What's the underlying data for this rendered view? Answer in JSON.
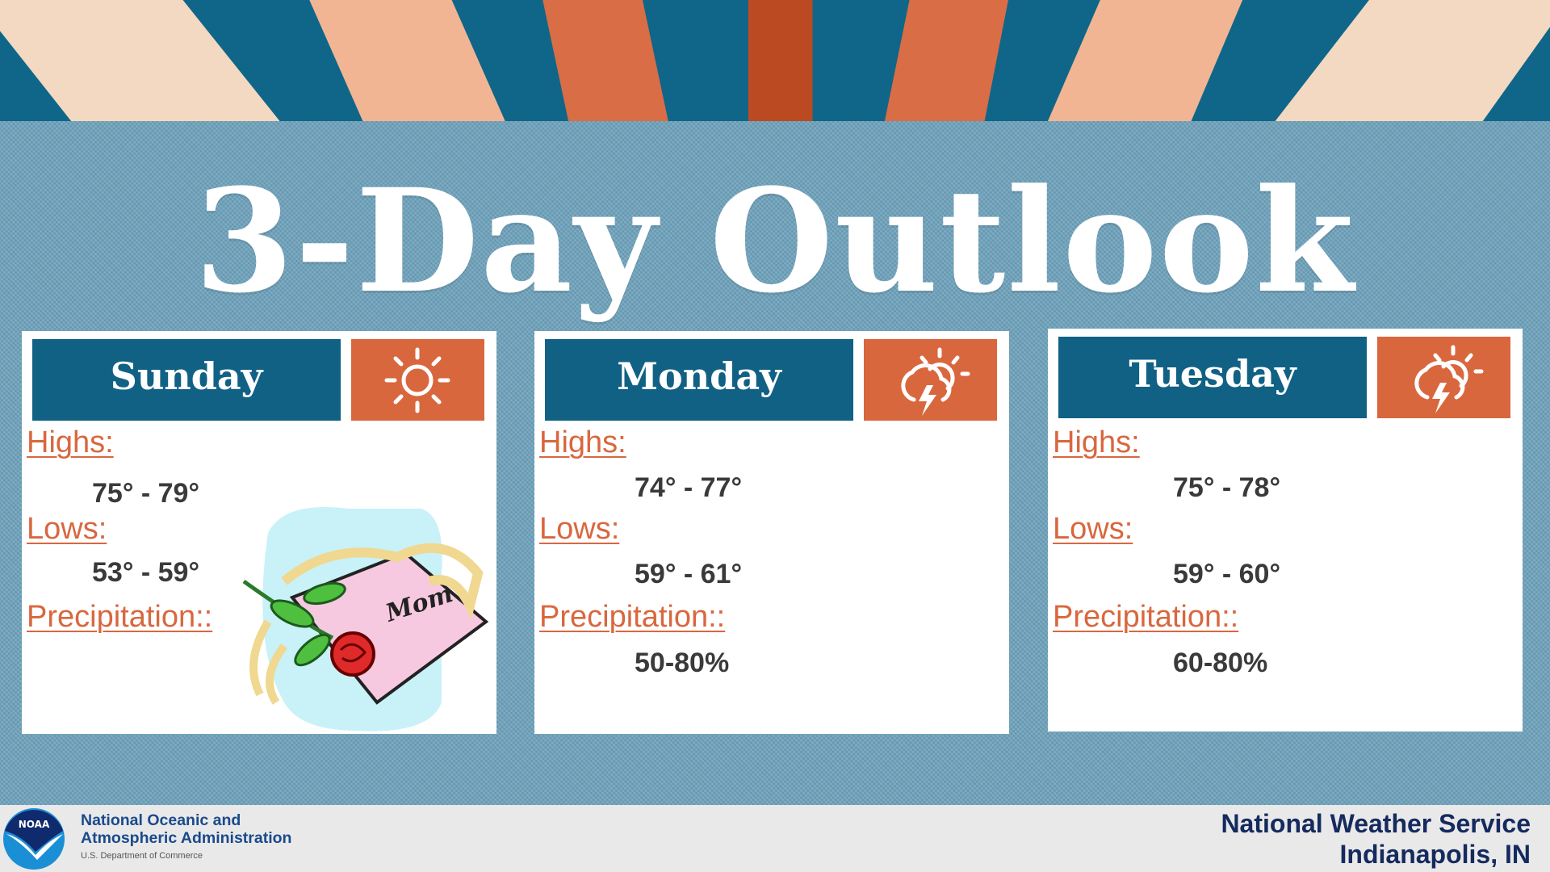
{
  "title": "3-Day Outlook",
  "colors": {
    "header_blue": "#116185",
    "accent_orange": "#d9673e",
    "stripe_red": "#bb4a22",
    "stripe_peach": "#f2b593",
    "stripe_cream": "#f3d9c1",
    "background": "#6fa2bb"
  },
  "labels": {
    "highs": "Highs:",
    "lows": "Lows:",
    "precip": "Precipitation::"
  },
  "days": [
    {
      "name": "Sunday",
      "icon": "sun-icon",
      "highs": "75° - 79°",
      "lows": "53° - 59°",
      "precip": "",
      "clipart": "Mom"
    },
    {
      "name": "Monday",
      "icon": "thunderstorm-sun-icon",
      "highs": "74° - 77°",
      "lows": "59° - 61°",
      "precip": "50-80%"
    },
    {
      "name": "Tuesday",
      "icon": "thunderstorm-sun-icon",
      "highs": "75° - 78°",
      "lows": "59° - 60°",
      "precip": "60-80%"
    }
  ],
  "footer": {
    "logo_text": "NOAA",
    "org_line1": "National Oceanic and",
    "org_line2": "Atmospheric Administration",
    "dept": "U.S. Department of Commerce",
    "office_line1": "National Weather Service",
    "office_line2": "Indianapolis, IN"
  }
}
